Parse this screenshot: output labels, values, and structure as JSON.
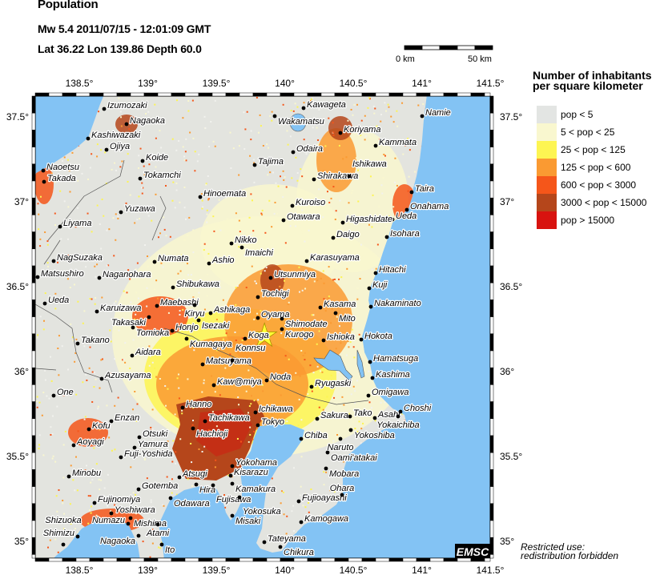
{
  "header": {
    "title": "Population",
    "event_line": "Mw 5.4  2011/07/15 - 12:01:09 GMT",
    "location_line": "Lat 36.22    Lon 139.86    Depth  60.0"
  },
  "scale_bar": {
    "start_label": "0 km",
    "end_label": "50 km"
  },
  "legend": {
    "title": "Number of inhabitants per square kilometer",
    "items": [
      {
        "label": "pop < 5",
        "color": "#e3e5e3"
      },
      {
        "label": "5 < pop < 25",
        "color": "#f9f7cf"
      },
      {
        "label": "25 < pop < 125",
        "color": "#fdf552"
      },
      {
        "label": "125 < pop < 600",
        "color": "#fa9a32"
      },
      {
        "label": "600 < pop < 3000",
        "color": "#f5561a"
      },
      {
        "label": "3000 < pop < 15000",
        "color": "#b5461b"
      },
      {
        "label": "pop > 15000",
        "color": "#d8130f"
      }
    ]
  },
  "map": {
    "lon_ticks": [
      "138.5°",
      "139°",
      "139.5°",
      "140°",
      "140.5°",
      "141°",
      "141.5°"
    ],
    "lat_ticks": [
      "37.5°",
      "37°",
      "36.5°",
      "36°",
      "35.5°",
      "35°"
    ],
    "sea_color": "#83c3f4",
    "epicenter": {
      "lat": 36.22,
      "lon": 139.86,
      "marker": "star",
      "color": "#ffff33"
    },
    "cities": [
      "Izumozaki",
      "Nagaoka",
      "Kashiwazaki",
      "Ojiya",
      "Koide",
      "Naoetsu",
      "Takada",
      "Tokamchi",
      "Hinoemata",
      "Yuzawa",
      "Liyama",
      "Tajima",
      "Nikko",
      "Imaichi",
      "Kawageta",
      "Wakamatsu",
      "Koriyama",
      "Kammata",
      "Odaira",
      "Shirakawa",
      "Ishikawa",
      "Taira",
      "Onahama",
      "Ueda",
      "Kuroiso",
      "Otawara",
      "Higashidate",
      "Daigo",
      "Isohara",
      "Namie",
      "NagSuzaka",
      "Matsushiro",
      "Naganohara",
      "Numata",
      "Ashio",
      "Shibukawa",
      "Ueda",
      "Karuizawa",
      "Maebashi",
      "Kiryu",
      "Ashikaga",
      "Isezaki",
      "Takasaki",
      "Tomioka",
      "Honjo",
      "Kumagaya",
      "Takano",
      "Aidara",
      "Matsuyama",
      "Konnsu",
      "Azusayama",
      "Kaw@miya",
      "Tochigi",
      "Oyama",
      "Koga",
      "Shimodate",
      "Kurogo",
      "Karasuyama",
      "Utsunmiya",
      "Hitachi",
      "Kuji",
      "Kasama",
      "Mito",
      "Nakaminato",
      "Ishioka",
      "Hokota",
      "Hamatsuga",
      "Kashima",
      "Noda",
      "Ryugaski",
      "Omigawa",
      "One",
      "Hanno",
      "Enzan",
      "Tachikawa",
      "Hachioji",
      "Kofu",
      "Otsuki",
      "Aoyagi",
      "Yamura",
      "Fuji-Yoshida",
      "Yokohama",
      "Atsugi",
      "Kisarazu",
      "Kamakura",
      "Minobu",
      "Hira",
      "Fujisawa",
      "Gotemba",
      "Odawara",
      "Yokosuka",
      "Fujinomiya",
      "Yoshiwara",
      "Misaki",
      "Mishima",
      "Numazu",
      "Atami",
      "Nagaoka",
      "Shimizu",
      "Shizuoka",
      "Ito",
      "Ichikawa",
      "Tokyo",
      "Sakura",
      "Tako",
      "Asahi",
      "Choshi",
      "Yokaichiba",
      "Yokoshiba",
      "Chiba",
      "Naruto",
      "Oami'atakai",
      "Mobara",
      "Fujioayashi",
      "Ohara",
      "Kamogawa",
      "Tateyama",
      "Chikura"
    ]
  },
  "logo": "EMSC",
  "notice": {
    "line1": "Restricted use:",
    "line2": "redistribution forbidden"
  }
}
